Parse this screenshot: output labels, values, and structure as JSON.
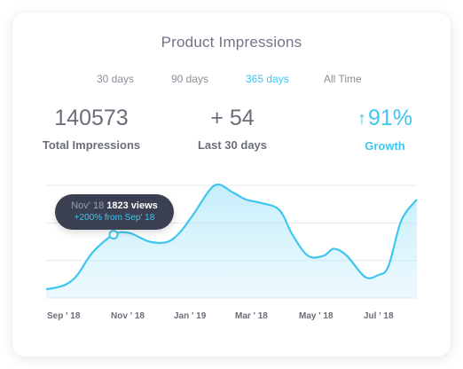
{
  "card": {
    "title": "Product Impressions",
    "tabs": [
      {
        "label": "30 days",
        "active": false
      },
      {
        "label": "90 days",
        "active": false
      },
      {
        "label": "365 days",
        "active": true
      },
      {
        "label": "All Time",
        "active": false
      }
    ],
    "stats": [
      {
        "value": "140573",
        "label": "Total Impressions"
      },
      {
        "value": "+ 54",
        "label": "Last 30 days"
      },
      {
        "value": "91%",
        "label": "Growth",
        "icon": "arrow-up-icon"
      }
    ],
    "tooltip": {
      "month": "Nov' 18",
      "views": "1823 views",
      "change": "+200% from Sep' 18"
    }
  },
  "colors": {
    "accent": "#3ec6f0",
    "tooltip_bg": "#3a3f51",
    "text": "#6a6e78"
  },
  "chart_data": {
    "type": "area",
    "x_tick_labels": [
      "Sep ' 18",
      "Nov ' 18",
      "Jan ' 19",
      "Mar ' 18",
      "May ' 18",
      "Jul ' 18"
    ],
    "x": [
      0,
      0.4,
      0.8,
      1.2,
      1.8,
      2.6,
      3.2,
      4.0,
      4.7,
      5.2,
      5.7,
      6.5,
      7.2,
      7.7,
      8.3,
      9.0,
      9.5,
      10.1,
      10.7,
      11.1,
      11.6,
      12.3,
      12.8,
      13.2,
      13.7,
      14.3
    ],
    "y": [
      0.25,
      0.3,
      0.4,
      0.65,
      1.3,
      1.8,
      1.85,
      1.6,
      1.6,
      1.9,
      2.4,
      3.2,
      3.0,
      2.8,
      2.7,
      2.5,
      1.8,
      1.2,
      1.2,
      1.4,
      1.2,
      0.6,
      0.65,
      0.9,
      2.2,
      2.8
    ],
    "highlight_index": 5,
    "grid_lines": 4,
    "ylim": [
      0,
      3.2
    ],
    "xlim": [
      0,
      14.3
    ]
  }
}
